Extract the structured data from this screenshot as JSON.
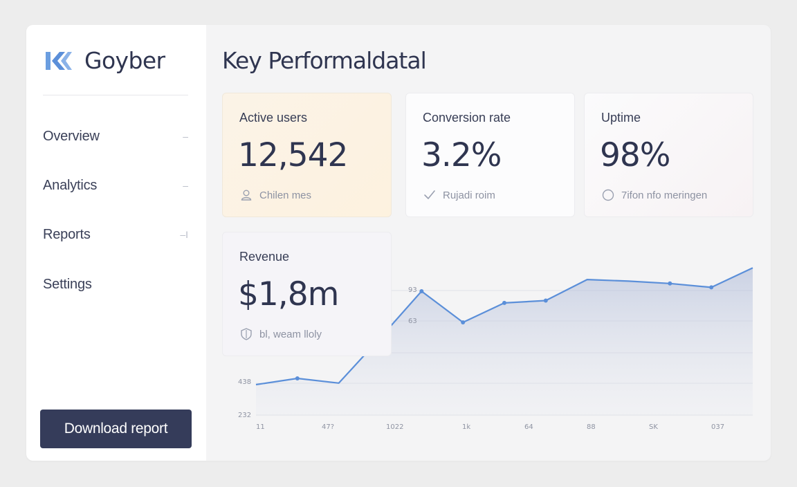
{
  "brand": {
    "name": "Goyber"
  },
  "sidebar": {
    "items": [
      {
        "label": "Overview",
        "marker": "–"
      },
      {
        "label": "Analytics",
        "marker": "–"
      },
      {
        "label": "Reports",
        "marker": "–I"
      },
      {
        "label": "Settings",
        "marker": ""
      }
    ],
    "download_label": "Download report"
  },
  "page": {
    "title": "Key Performaldatal"
  },
  "cards": [
    {
      "label": "Active users",
      "value": "12,542",
      "foot": "Chilen mes",
      "icon": "users-icon"
    },
    {
      "label": "Conversion rate",
      "value": "3.2%",
      "foot": "Rujadi roim",
      "icon": "check-icon"
    },
    {
      "label": "Uptime",
      "value": "98%",
      "foot": "7ifon nfo meringen",
      "icon": "clock-icon"
    },
    {
      "label": "Revenue",
      "value": "$1,8m",
      "foot": "bl, weam lloly",
      "icon": "shield-icon"
    }
  ],
  "chart_data": {
    "type": "area",
    "x": [
      0,
      1,
      2,
      3,
      4,
      5,
      6,
      7,
      8,
      9,
      10,
      11,
      12
    ],
    "y": [
      440,
      448,
      442,
      500,
      560,
      520,
      545,
      548,
      575,
      573,
      570,
      565,
      590
    ],
    "y_tick_labels": [
      "232",
      "438",
      "63",
      "93"
    ],
    "x_tick_labels": [
      "11",
      "47?",
      "1022",
      "1k",
      "64",
      "88",
      "SK",
      "037"
    ],
    "ylim": [
      400,
      600
    ],
    "grid": true,
    "color": "#5b8fd9"
  }
}
